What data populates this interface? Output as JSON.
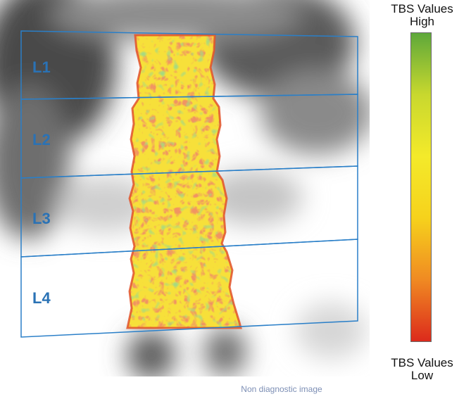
{
  "regions": [
    {
      "label": "L1"
    },
    {
      "label": "L2"
    },
    {
      "label": "L3"
    },
    {
      "label": "L4"
    }
  ],
  "legend": {
    "title": "TBS Values",
    "high_label": "High",
    "low_label": "Low",
    "gradient": [
      "#dc2a1c",
      "#f08a22",
      "#f6d21c",
      "#f4ea2a",
      "#c8d82e",
      "#5ea83a"
    ]
  },
  "footer": {
    "note": "Non diagnostic image"
  },
  "colors": {
    "region_outline": "#2a7fc8",
    "region_label": "#2a72b5",
    "texture_warm": "#f7e03a",
    "texture_low": "#e04a24",
    "texture_high": "#64b43c"
  }
}
